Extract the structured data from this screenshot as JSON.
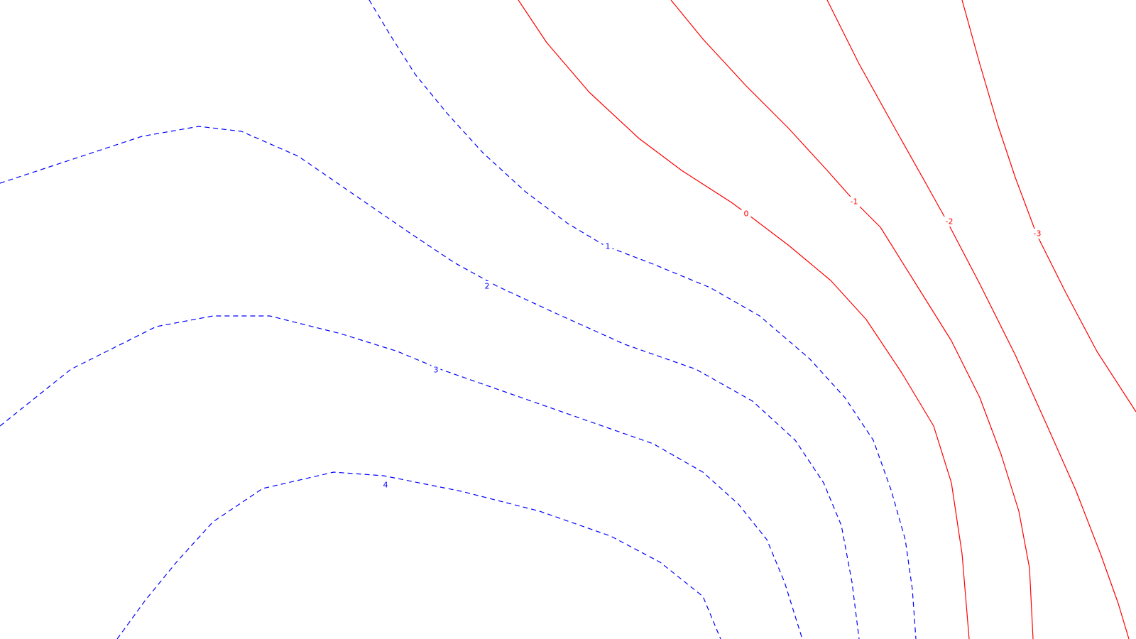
{
  "map": {
    "type": "contour-map",
    "background_color": "#ffffff",
    "positive_color": "#0000ff",
    "negative_color": "#ff0000",
    "positive_style": "dashed",
    "negative_style": "solid"
  },
  "contours": [
    {
      "id": "pos-4",
      "label": "4",
      "level": 4,
      "sign": "positive"
    },
    {
      "id": "pos-3",
      "label": "3",
      "level": 3,
      "sign": "positive"
    },
    {
      "id": "pos-2",
      "label": "2",
      "level": 2,
      "sign": "positive"
    },
    {
      "id": "pos-1",
      "label": "1",
      "level": 1,
      "sign": "positive"
    },
    {
      "id": "zero",
      "label": "0",
      "level": 0,
      "sign": "negative"
    },
    {
      "id": "neg-1",
      "label": "-1",
      "level": -1,
      "sign": "negative"
    },
    {
      "id": "neg-2",
      "label": "-2",
      "level": -2,
      "sign": "negative"
    },
    {
      "id": "neg-3",
      "label": "-3",
      "level": -3,
      "sign": "negative"
    }
  ]
}
